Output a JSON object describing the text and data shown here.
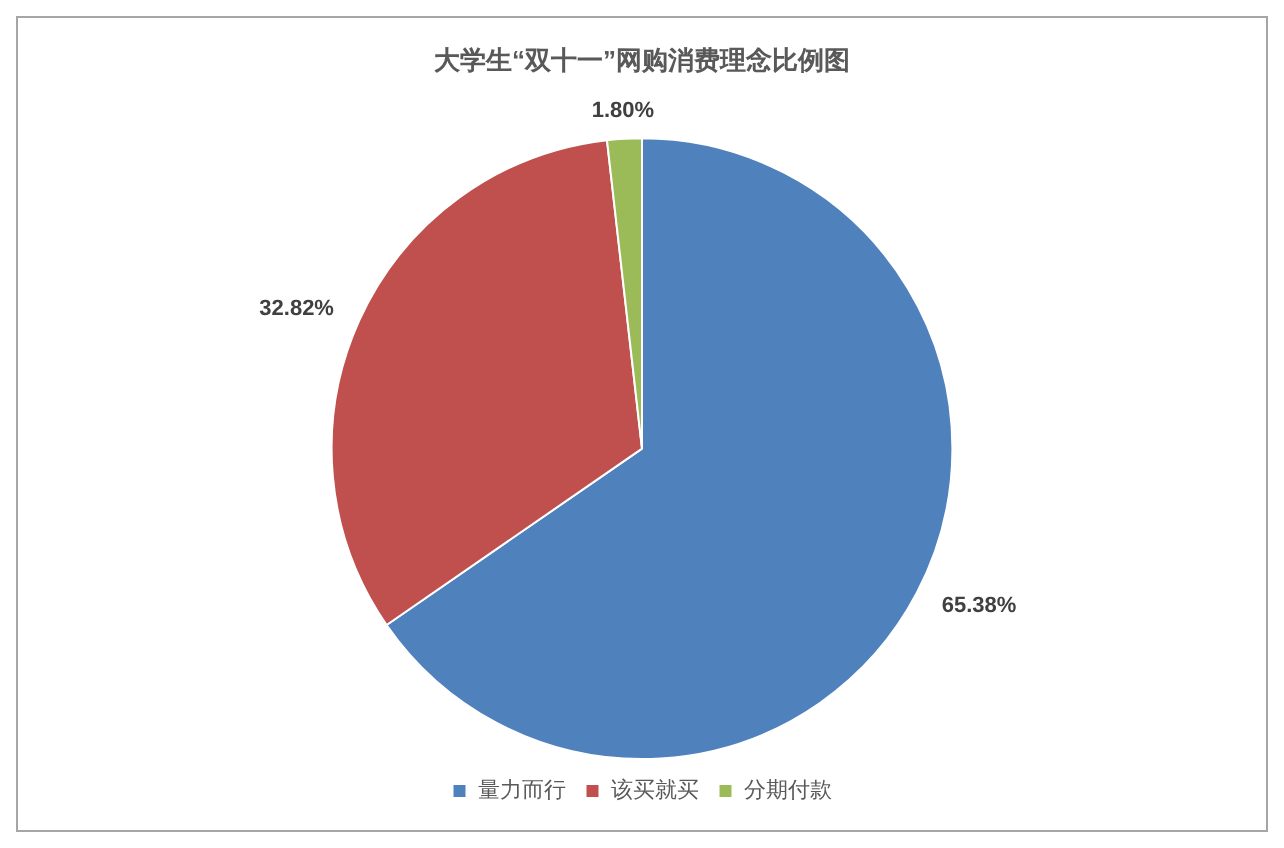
{
  "chart_data": {
    "type": "pie",
    "title": "大学生“双十一”网购消费理念比例图",
    "categories": [
      "量力而行",
      "该买就买",
      "分期付款"
    ],
    "values": [
      65.38,
      32.82,
      1.8
    ],
    "colors": [
      "#4f81bd",
      "#c0504d",
      "#9bbb59"
    ],
    "value_labels": [
      "65.38%",
      "32.82%",
      "1.80%"
    ],
    "legend": "bottom"
  }
}
